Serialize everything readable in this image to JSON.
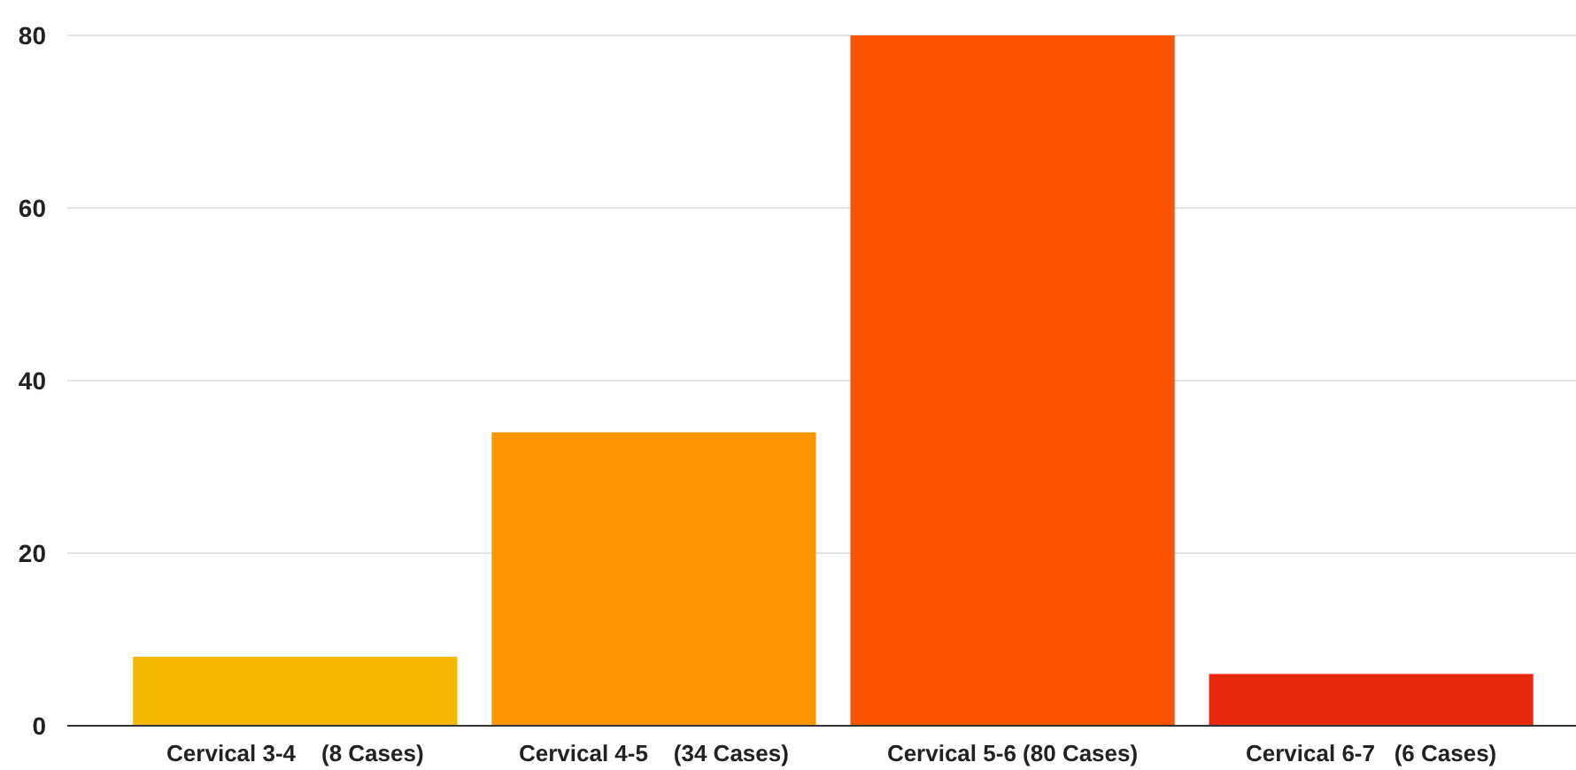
{
  "chart_data": {
    "type": "bar",
    "categories": [
      "Cervical 3-4    (8 Cases)",
      "Cervical 4-5    (34 Cases)",
      "Cervical 5-6 (80 Cases)",
      "Cervical 6-7   (6 Cases)"
    ],
    "values": [
      8,
      34,
      80,
      6
    ],
    "colors": [
      "#f5b800",
      "#fb9500",
      "#fe5300",
      "#e8280f"
    ],
    "ylim": [
      0,
      80
    ],
    "yticks": [
      0,
      20,
      40,
      60,
      80
    ],
    "grid": "y"
  }
}
